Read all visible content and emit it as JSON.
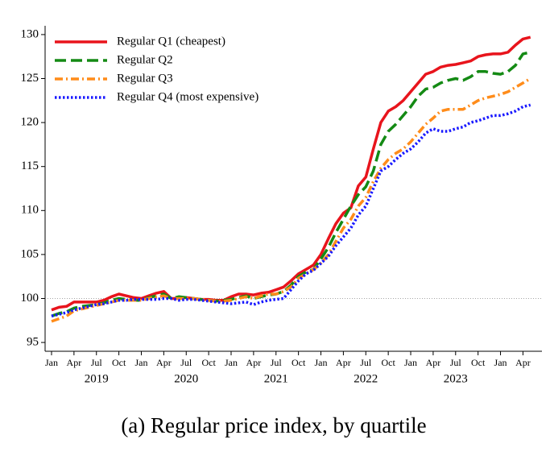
{
  "chart_data": {
    "type": "line",
    "caption": "(a) Regular price index, by quartile",
    "x": [
      "2019-01",
      "2019-02",
      "2019-03",
      "2019-04",
      "2019-05",
      "2019-06",
      "2019-07",
      "2019-08",
      "2019-09",
      "2019-10",
      "2019-11",
      "2019-12",
      "2020-01",
      "2020-02",
      "2020-03",
      "2020-04",
      "2020-05",
      "2020-06",
      "2020-07",
      "2020-08",
      "2020-09",
      "2020-10",
      "2020-11",
      "2020-12",
      "2021-01",
      "2021-02",
      "2021-03",
      "2021-04",
      "2021-05",
      "2021-06",
      "2021-07",
      "2021-08",
      "2021-09",
      "2021-10",
      "2021-11",
      "2021-12",
      "2022-01",
      "2022-02",
      "2022-03",
      "2022-04",
      "2022-05",
      "2022-06",
      "2022-07",
      "2022-08",
      "2022-09",
      "2022-10",
      "2022-11",
      "2022-12",
      "2023-01",
      "2023-02",
      "2023-03",
      "2023-04",
      "2023-05",
      "2023-06",
      "2023-07",
      "2023-08",
      "2023-09",
      "2023-10",
      "2023-11",
      "2023-12",
      "2024-01",
      "2024-02",
      "2024-03",
      "2024-04",
      "2024-05"
    ],
    "series": [
      {
        "name": "Regular Q1 (cheapest)",
        "color": "#e8141c",
        "dash": "solid",
        "values": [
          98.7,
          99.0,
          99.1,
          99.6,
          99.6,
          99.6,
          99.6,
          99.8,
          100.2,
          100.5,
          100.3,
          100.1,
          100.0,
          100.3,
          100.6,
          100.8,
          100.0,
          100.0,
          100.1,
          100.0,
          99.9,
          99.9,
          99.8,
          99.8,
          100.2,
          100.5,
          100.5,
          100.4,
          100.6,
          100.7,
          101.0,
          101.3,
          102.0,
          102.8,
          103.3,
          103.8,
          105.0,
          106.8,
          108.5,
          109.7,
          110.3,
          112.8,
          113.8,
          117.0,
          120.0,
          121.3,
          121.8,
          122.5,
          123.5,
          124.5,
          125.5,
          125.8,
          126.3,
          126.5,
          126.6,
          126.8,
          127.0,
          127.5,
          127.7,
          127.8,
          127.8,
          128.0,
          128.8,
          129.5,
          129.7
        ]
      },
      {
        "name": "Regular Q2",
        "color": "#148a14",
        "dash": "dashed",
        "values": [
          98.0,
          98.3,
          98.5,
          98.9,
          99.1,
          99.2,
          99.3,
          99.5,
          99.8,
          100.0,
          99.9,
          99.8,
          99.8,
          100.1,
          100.3,
          100.5,
          100.0,
          100.2,
          100.1,
          100.0,
          99.9,
          99.8,
          99.7,
          99.8,
          99.9,
          100.1,
          100.3,
          100.0,
          100.2,
          100.4,
          100.5,
          100.8,
          101.5,
          102.5,
          103.0,
          103.3,
          104.5,
          105.8,
          107.5,
          109.0,
          110.5,
          111.8,
          112.7,
          114.5,
          117.5,
          119.0,
          119.8,
          120.8,
          121.8,
          123.0,
          123.8,
          124.0,
          124.5,
          124.8,
          125.0,
          124.8,
          125.2,
          125.8,
          125.8,
          125.6,
          125.5,
          125.8,
          126.5,
          127.8,
          128.0
        ]
      },
      {
        "name": "Regular Q3",
        "color": "#ff8c1a",
        "dash": "dashdot",
        "values": [
          97.4,
          97.7,
          98.0,
          98.6,
          98.8,
          99.0,
          99.2,
          99.4,
          99.6,
          99.8,
          99.8,
          99.8,
          99.8,
          100.0,
          100.2,
          100.3,
          100.0,
          100.0,
          100.0,
          100.0,
          99.9,
          99.8,
          99.7,
          99.7,
          99.8,
          100.0,
          100.2,
          100.0,
          100.3,
          100.5,
          100.5,
          100.8,
          101.3,
          102.3,
          102.8,
          103.3,
          104.0,
          105.0,
          106.5,
          108.0,
          109.0,
          110.5,
          111.5,
          113.3,
          114.8,
          115.8,
          116.5,
          117.0,
          117.8,
          118.8,
          119.8,
          120.5,
          121.3,
          121.5,
          121.5,
          121.5,
          122.0,
          122.5,
          122.8,
          123.0,
          123.2,
          123.5,
          124.0,
          124.5,
          125.0
        ]
      },
      {
        "name": "Regular Q4 (most expensive)",
        "color": "#1a1aff",
        "dash": "dotted",
        "values": [
          98.0,
          98.2,
          98.4,
          98.7,
          98.9,
          99.1,
          99.3,
          99.4,
          99.6,
          99.8,
          99.8,
          99.9,
          99.9,
          99.9,
          99.9,
          100.0,
          100.0,
          99.8,
          99.9,
          99.9,
          99.8,
          99.7,
          99.6,
          99.5,
          99.4,
          99.5,
          99.6,
          99.3,
          99.6,
          99.8,
          99.9,
          100.0,
          101.0,
          102.0,
          102.8,
          103.2,
          104.0,
          104.8,
          106.0,
          107.0,
          108.0,
          109.5,
          110.5,
          112.5,
          114.5,
          115.0,
          115.8,
          116.5,
          117.0,
          117.8,
          118.8,
          119.3,
          119.0,
          119.0,
          119.3,
          119.5,
          120.0,
          120.2,
          120.5,
          120.8,
          120.8,
          121.0,
          121.3,
          121.8,
          122.0
        ]
      }
    ],
    "xlim": [
      "2018-12",
      "2024-06"
    ],
    "xticks": [
      {
        "value": "2019-01",
        "label": "Jan"
      },
      {
        "value": "2019-04",
        "label": "Apr"
      },
      {
        "value": "2019-07",
        "label": "Jul"
      },
      {
        "value": "2019-10",
        "label": "Oct"
      },
      {
        "value": "2020-01",
        "label": "Jan"
      },
      {
        "value": "2020-04",
        "label": "Apr"
      },
      {
        "value": "2020-07",
        "label": "Jul"
      },
      {
        "value": "2020-10",
        "label": "Oct"
      },
      {
        "value": "2021-01",
        "label": "Jan"
      },
      {
        "value": "2021-04",
        "label": "Apr"
      },
      {
        "value": "2021-07",
        "label": "Jul"
      },
      {
        "value": "2021-10",
        "label": "Oct"
      },
      {
        "value": "2022-01",
        "label": "Jan"
      },
      {
        "value": "2022-04",
        "label": "Apr"
      },
      {
        "value": "2022-07",
        "label": "Jul"
      },
      {
        "value": "2022-10",
        "label": "Oct"
      },
      {
        "value": "2023-01",
        "label": "Jan"
      },
      {
        "value": "2023-04",
        "label": "Apr"
      },
      {
        "value": "2023-07",
        "label": "Jul"
      },
      {
        "value": "2023-10",
        "label": "Oct"
      },
      {
        "value": "2024-01",
        "label": "Jan"
      },
      {
        "value": "2024-04",
        "label": "Apr"
      }
    ],
    "x_group_labels": [
      "2019",
      "2020",
      "2021",
      "2022",
      "2023"
    ],
    "ylim": [
      94,
      131
    ],
    "yticks": [
      95,
      100,
      105,
      110,
      115,
      120,
      125,
      130
    ],
    "hline": 100,
    "legend": "upper left"
  }
}
